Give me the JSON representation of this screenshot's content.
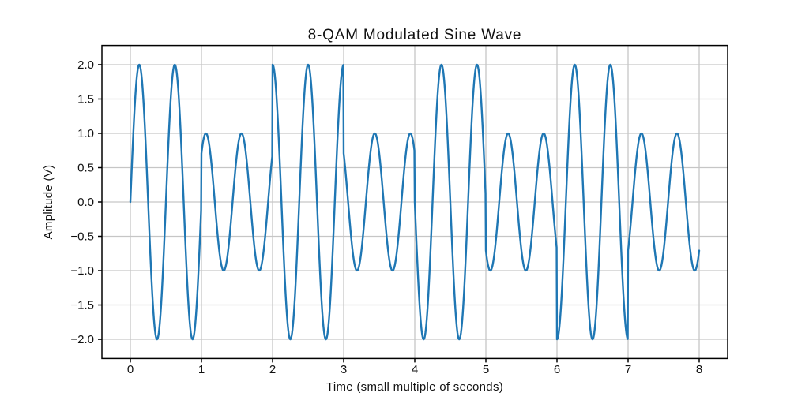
{
  "chart_data": {
    "type": "line",
    "title": "8-QAM Modulated Sine Wave",
    "xlabel": "Time (small multiple of seconds)",
    "ylabel": "Amplitude (V)",
    "xlim": [
      -0.4,
      8.4
    ],
    "ylim": [
      -2.28,
      2.28
    ],
    "xticks": [
      0,
      1,
      2,
      3,
      4,
      5,
      6,
      7,
      8
    ],
    "xtick_labels": [
      "0",
      "1",
      "2",
      "3",
      "4",
      "5",
      "6",
      "7",
      "8"
    ],
    "yticks": [
      -2.0,
      -1.5,
      -1.0,
      -0.5,
      0.0,
      0.5,
      1.0,
      1.5,
      2.0
    ],
    "ytick_labels": [
      "−2.0",
      "−1.5",
      "−1.0",
      "−0.5",
      "0.0",
      "0.5",
      "1.0",
      "1.5",
      "2.0"
    ],
    "grid": true,
    "legend": false,
    "line_color": "#1f77b4",
    "grid_color": "#c6c6c6",
    "spine_color": "#000000",
    "text_color": "#111111",
    "carrier_freq_cycles_per_unit": 2,
    "t_start": 0,
    "t_end": 8,
    "end_value": -0.707,
    "segments": [
      {
        "t_start": 0,
        "t_end": 1,
        "amplitude": 2,
        "phase_deg": 0
      },
      {
        "t_start": 1,
        "t_end": 2,
        "amplitude": 1,
        "phase_deg": 45
      },
      {
        "t_start": 2,
        "t_end": 3,
        "amplitude": 2,
        "phase_deg": 90
      },
      {
        "t_start": 3,
        "t_end": 4,
        "amplitude": 1,
        "phase_deg": 135
      },
      {
        "t_start": 4,
        "t_end": 5,
        "amplitude": 2,
        "phase_deg": 180
      },
      {
        "t_start": 5,
        "t_end": 6,
        "amplitude": 1,
        "phase_deg": 225
      },
      {
        "t_start": 6,
        "t_end": 7,
        "amplitude": 2,
        "phase_deg": 270
      },
      {
        "t_start": 7,
        "t_end": 8,
        "amplitude": 1,
        "phase_deg": 315
      }
    ]
  }
}
